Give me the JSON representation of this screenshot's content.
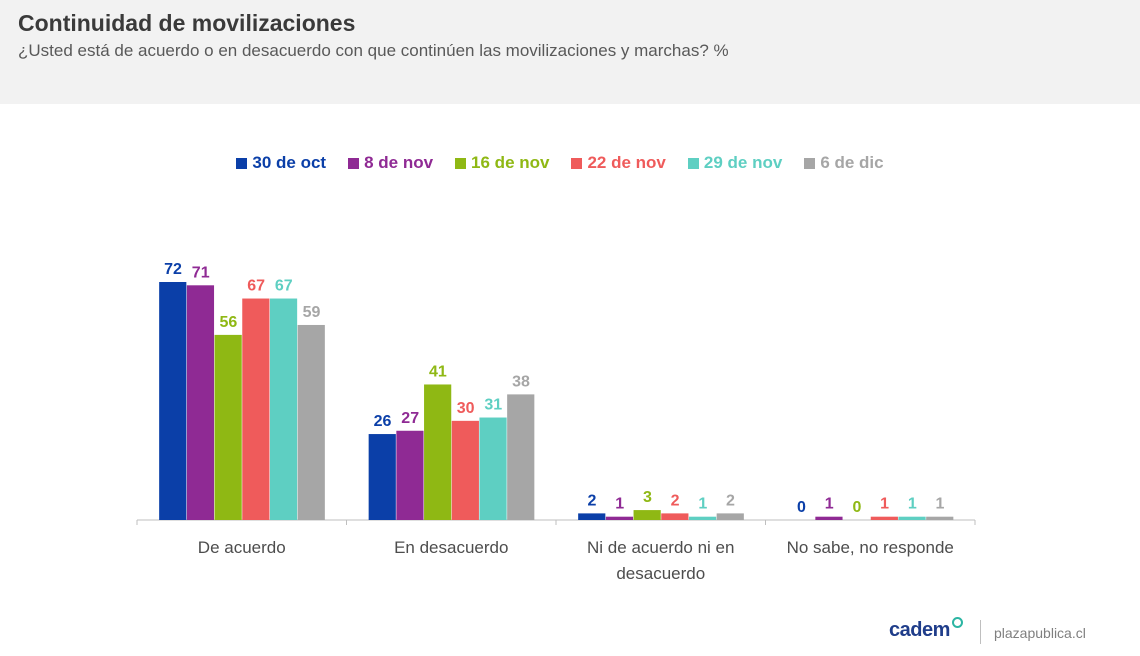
{
  "header": {
    "title": "Continuidad de movilizaciones",
    "subtitle": "¿Usted está de acuerdo o en desacuerdo con que continúen las movilizaciones y marchas? %"
  },
  "footer": {
    "brand": "cadem",
    "site": "plazapublica.cl"
  },
  "chart_data": {
    "type": "bar",
    "title": "",
    "xlabel": "",
    "ylabel": "",
    "ylim": [
      0,
      80
    ],
    "grid": false,
    "legend_position": "top-center",
    "categories": [
      "De acuerdo",
      "En desacuerdo",
      "Ni de acuerdo ni en desacuerdo",
      "No sabe, no responde"
    ],
    "category_lines": [
      [
        "De acuerdo"
      ],
      [
        "En desacuerdo"
      ],
      [
        "Ni de acuerdo ni en",
        "desacuerdo"
      ],
      [
        "No sabe, no responde"
      ]
    ],
    "series": [
      {
        "name": "30 de oct",
        "color": "#0b3fa8",
        "values": [
          72,
          26,
          2,
          0
        ]
      },
      {
        "name": "8 de nov",
        "color": "#8f2a94",
        "values": [
          71,
          27,
          1,
          1
        ]
      },
      {
        "name": "16 de nov",
        "color": "#8fb814",
        "values": [
          56,
          41,
          3,
          0
        ]
      },
      {
        "name": "22 de nov",
        "color": "#ef5b5b",
        "values": [
          67,
          30,
          2,
          1
        ]
      },
      {
        "name": "29 de nov",
        "color": "#5ecfc2",
        "values": [
          67,
          31,
          1,
          1
        ]
      },
      {
        "name": "6 de dic",
        "color": "#a6a6a6",
        "values": [
          59,
          38,
          2,
          1
        ]
      }
    ]
  }
}
